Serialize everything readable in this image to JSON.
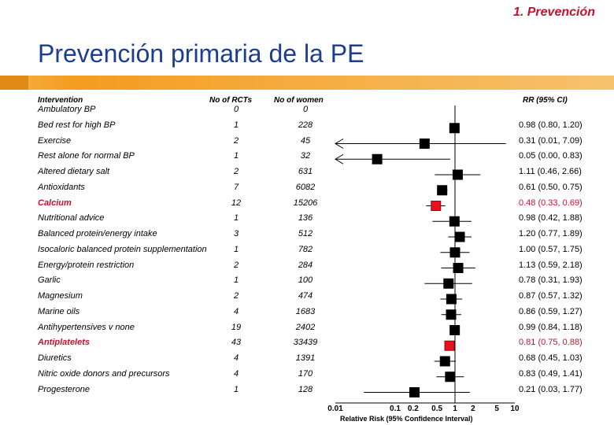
{
  "header": {
    "section": "1. Prevención",
    "title": "Prevención primaria de la PE"
  },
  "columns": {
    "intervention": "Intervention",
    "rcts": "No of RCTs",
    "women": "No of women",
    "rr": "RR (95% CI)"
  },
  "colors": {
    "title": "#1d3d8f",
    "highlight": "#c8102e",
    "marker": "#000000",
    "highlight_marker": "#e8101c",
    "band": "#f49c1e"
  },
  "chart_data": {
    "type": "forest",
    "xlabel": "Relative Risk (95% Confidence Interval)",
    "xscale": "log",
    "xlim": [
      0.01,
      10
    ],
    "xticks": [
      "0.01",
      "0.1",
      "0.2",
      "0.5",
      "1",
      "2",
      "5",
      "10"
    ],
    "rows": [
      {
        "label": "Ambulatory BP",
        "rcts": "0",
        "women": "0",
        "rr_text": "",
        "rr": null,
        "lo": null,
        "hi": null,
        "highlight": false
      },
      {
        "label": "Bed rest for high BP",
        "rcts": "1",
        "women": "228",
        "rr_text": "0.98 (0.80, 1.20)",
        "rr": 0.98,
        "lo": 0.8,
        "hi": 1.2,
        "highlight": false
      },
      {
        "label": "Exercise",
        "rcts": "2",
        "women": "45",
        "rr_text": "0.31 (0.01, 7.09)",
        "rr": 0.31,
        "lo": 0.01,
        "hi": 7.09,
        "highlight": false
      },
      {
        "label": "Rest alone for normal BP",
        "rcts": "1",
        "women": "32",
        "rr_text": "0.05 (0.00, 0.83)",
        "rr": 0.05,
        "lo": 0.0,
        "hi": 0.83,
        "highlight": false
      },
      {
        "label": "Altered dietary salt",
        "rcts": "2",
        "women": "631",
        "rr_text": "1.11 (0.46, 2.66)",
        "rr": 1.11,
        "lo": 0.46,
        "hi": 2.66,
        "highlight": false
      },
      {
        "label": "Antioxidants",
        "rcts": "7",
        "women": "6082",
        "rr_text": "0.61 (0.50, 0.75)",
        "rr": 0.61,
        "lo": 0.5,
        "hi": 0.75,
        "highlight": false
      },
      {
        "label": "Calcium",
        "rcts": "12",
        "women": "15206",
        "rr_text": "0.48 (0.33, 0.69)",
        "rr": 0.48,
        "lo": 0.33,
        "hi": 0.69,
        "highlight": true
      },
      {
        "label": "Nutritional advice",
        "rcts": "1",
        "women": "136",
        "rr_text": "0.98 (0.42, 1.88)",
        "rr": 0.98,
        "lo": 0.42,
        "hi": 1.88,
        "highlight": false
      },
      {
        "label": "Balanced protein/energy intake",
        "rcts": "3",
        "women": "512",
        "rr_text": "1.20 (0.77, 1.89)",
        "rr": 1.2,
        "lo": 0.77,
        "hi": 1.89,
        "highlight": false
      },
      {
        "label": "Isocaloric balanced protein supplementation",
        "rcts": "1",
        "women": "782",
        "rr_text": "1.00 (0.57, 1.75)",
        "rr": 1.0,
        "lo": 0.57,
        "hi": 1.75,
        "highlight": false
      },
      {
        "label": "Energy/protein restriction",
        "rcts": "2",
        "women": "284",
        "rr_text": "1.13 (0.59, 2.18)",
        "rr": 1.13,
        "lo": 0.59,
        "hi": 2.18,
        "highlight": false
      },
      {
        "label": "Garlic",
        "rcts": "1",
        "women": "100",
        "rr_text": "0.78 (0.31, 1.93)",
        "rr": 0.78,
        "lo": 0.31,
        "hi": 1.93,
        "highlight": false
      },
      {
        "label": "Magnesium",
        "rcts": "2",
        "women": "474",
        "rr_text": "0.87 (0.57, 1.32)",
        "rr": 0.87,
        "lo": 0.57,
        "hi": 1.32,
        "highlight": false
      },
      {
        "label": "Marine oils",
        "rcts": "4",
        "women": "1683",
        "rr_text": "0.86 (0.59, 1.27)",
        "rr": 0.86,
        "lo": 0.59,
        "hi": 1.27,
        "highlight": false
      },
      {
        "label": "Antihypertensives v none",
        "rcts": "19",
        "women": "2402",
        "rr_text": "0.99 (0.84, 1.18)",
        "rr": 0.99,
        "lo": 0.84,
        "hi": 1.18,
        "highlight": false
      },
      {
        "label": "Antiplatelets",
        "rcts": "43",
        "women": "33439",
        "rr_text": "0.81 (0.75, 0.88)",
        "rr": 0.81,
        "lo": 0.75,
        "hi": 0.88,
        "highlight": true
      },
      {
        "label": "Diuretics",
        "rcts": "4",
        "women": "1391",
        "rr_text": "0.68 (0.45, 1.03)",
        "rr": 0.68,
        "lo": 0.45,
        "hi": 1.03,
        "highlight": false
      },
      {
        "label": "Nitric oxide donors and precursors",
        "rcts": "4",
        "women": "170",
        "rr_text": "0.83 (0.49, 1.41)",
        "rr": 0.83,
        "lo": 0.49,
        "hi": 1.41,
        "highlight": false
      },
      {
        "label": "Progesterone",
        "rcts": "1",
        "women": "128",
        "rr_text": "0.21 (0.03, 1.77)",
        "rr": 0.21,
        "lo": 0.03,
        "hi": 1.77,
        "highlight": false
      }
    ]
  }
}
